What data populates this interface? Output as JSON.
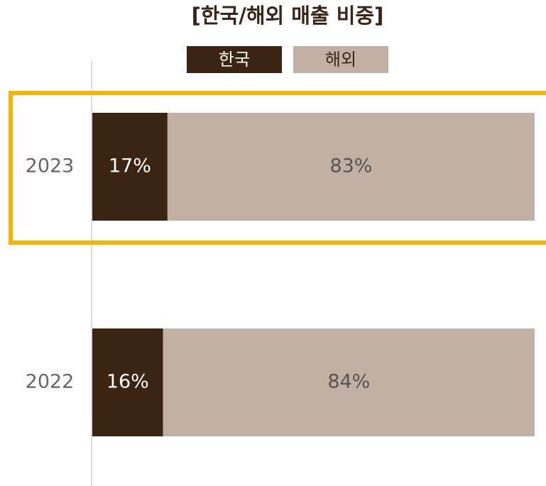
{
  "chart_data": {
    "type": "stacked_bar_horizontal_percent",
    "title": "[한국/해외 매출 비중]",
    "categories": [
      "2023",
      "2022"
    ],
    "series": [
      {
        "name": "한국",
        "color": "#3c2412",
        "values": [
          17,
          16
        ],
        "value_labels": [
          "17%",
          "16%"
        ]
      },
      {
        "name": "해외",
        "color": "#c2b0a4",
        "values": [
          83,
          84
        ],
        "value_labels": [
          "83%",
          "84%"
        ]
      }
    ]
  }
}
